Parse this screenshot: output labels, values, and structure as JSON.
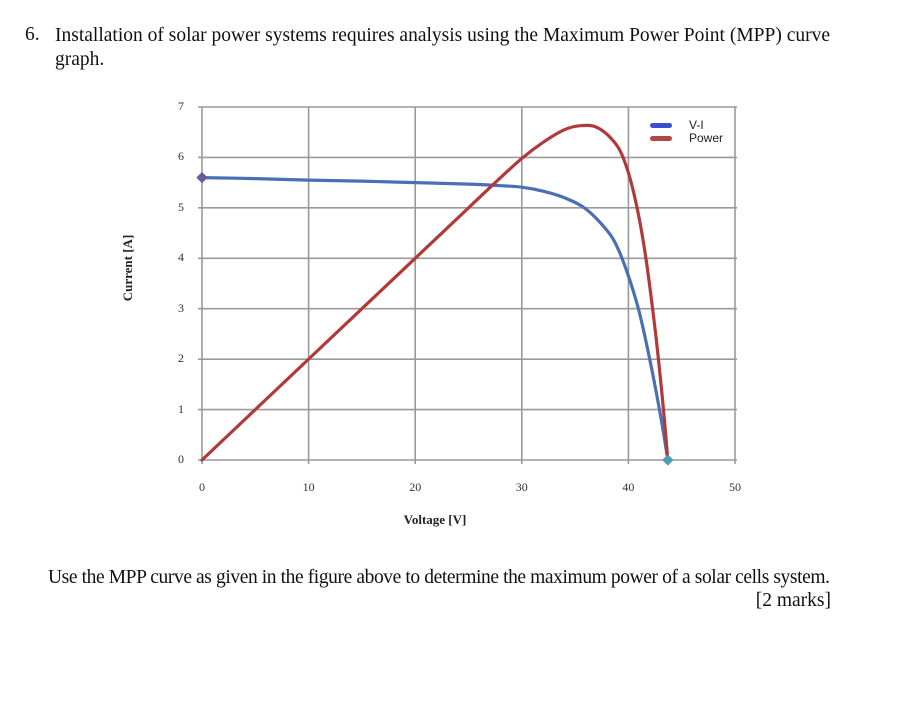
{
  "question": {
    "number": "6.",
    "text": "Installation of solar power systems requires analysis using the Maximum Power Point (MPP) curve graph."
  },
  "footer": {
    "text": "Use the MPP curve as given in the figure above to determine the maximum power of a solar cells system.",
    "marks": "[2 marks]"
  },
  "colors": {
    "vi": "#4a6fb5",
    "power": "#b03a3a",
    "grid": "#9a9a9a",
    "legend_vi": "#3a4fd0",
    "legend_power": "#b04848"
  },
  "chart_data": {
    "type": "line",
    "title": "",
    "xlabel": "Voltage [V]",
    "ylabel": "Current [A]",
    "xlim": [
      0,
      50
    ],
    "ylim": [
      0,
      7
    ],
    "x_ticks": [
      "0",
      "10",
      "20",
      "30",
      "40",
      "50"
    ],
    "y_ticks": [
      "0",
      "1",
      "2",
      "3",
      "4",
      "5",
      "6",
      "7"
    ],
    "grid": true,
    "legend_position": "top-right",
    "legend": [
      "V-I",
      "Power"
    ],
    "series": [
      {
        "name": "V-I",
        "x": [
          0,
          5,
          10,
          15,
          20,
          25,
          28,
          30,
          32,
          34,
          36,
          38,
          39,
          40,
          41,
          42,
          43,
          43.7
        ],
        "y": [
          5.6,
          5.58,
          5.55,
          5.53,
          5.5,
          5.47,
          5.44,
          5.41,
          5.33,
          5.2,
          4.98,
          4.55,
          4.2,
          3.65,
          2.95,
          2.0,
          0.9,
          0
        ]
      },
      {
        "name": "Power",
        "x": [
          0,
          5,
          10,
          15,
          20,
          25,
          27.5,
          30,
          32,
          34,
          35.5,
          37,
          38.5,
          39.5,
          40.5,
          41.5,
          42.5,
          43.2,
          43.7
        ],
        "y": [
          0,
          1.0,
          2.0,
          3.0,
          4.0,
          5.0,
          5.5,
          5.98,
          6.3,
          6.55,
          6.63,
          6.6,
          6.35,
          6.0,
          5.3,
          4.2,
          2.6,
          1.2,
          0
        ]
      }
    ],
    "markers": [
      {
        "x": 0,
        "y": 5.6,
        "color": "#6a5a9a"
      },
      {
        "x": 43.7,
        "y": 0,
        "color": "#4aa0b0"
      }
    ]
  }
}
